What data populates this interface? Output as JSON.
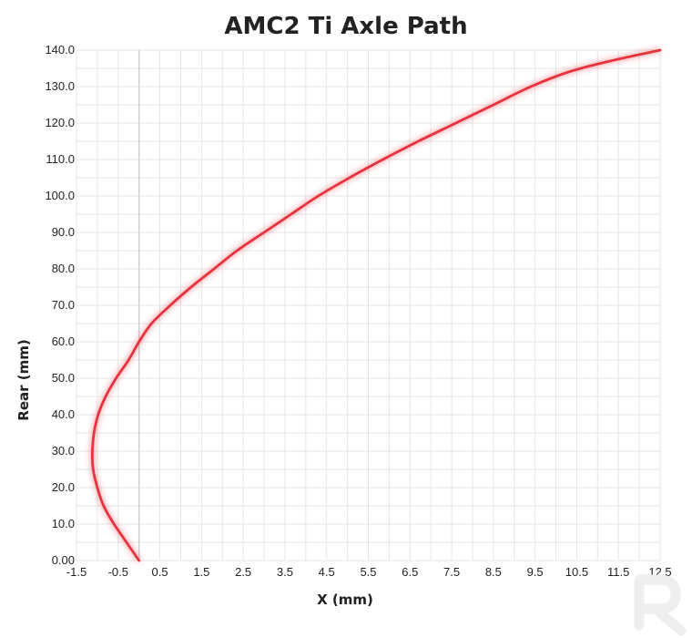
{
  "chart_data": {
    "type": "line",
    "title": "AMC2 Ti Axle Path",
    "xlabel": "X (mm)",
    "ylabel": "Rear (mm)",
    "xlim": [
      -1.5,
      12.5
    ],
    "ylim": [
      0,
      140
    ],
    "x_tick_labels": [
      "-1.5",
      "-0.5",
      "0.5",
      "1.5",
      "2.5",
      "3.5",
      "4.5",
      "5.5",
      "6.5",
      "7.5",
      "8.5",
      "9.5",
      "10.5",
      "11.5",
      "12.5"
    ],
    "y_tick_labels": [
      "0.00",
      "10.0",
      "20.0",
      "30.0",
      "40.0",
      "50.0",
      "60.0",
      "70.0",
      "80.0",
      "90.0",
      "100.0",
      "110.0",
      "120.0",
      "130.0",
      "140.0"
    ],
    "grid": true,
    "series": [
      {
        "color": "#e8333f",
        "x": [
          0,
          -0.3,
          -0.6,
          -0.85,
          -1.0,
          -1.1,
          -1.12,
          -1.08,
          -0.98,
          -0.8,
          -0.55,
          -0.25,
          0.0,
          0.3,
          0.75,
          1.25,
          1.8,
          2.35,
          3.0,
          3.65,
          4.3,
          5.05,
          5.85,
          6.7,
          7.6,
          8.5,
          9.4,
          10.3,
          11.3,
          12.5
        ],
        "y": [
          0,
          5,
          10,
          15,
          20,
          25,
          30,
          35,
          40,
          45,
          50,
          55,
          60,
          65,
          70,
          75,
          80,
          85,
          90,
          95,
          100,
          105,
          110,
          115,
          120,
          125,
          130,
          134,
          137,
          140
        ]
      }
    ]
  },
  "watermark": {
    "icon": "brand-r-logo-icon",
    "color": "#eeeeee"
  }
}
